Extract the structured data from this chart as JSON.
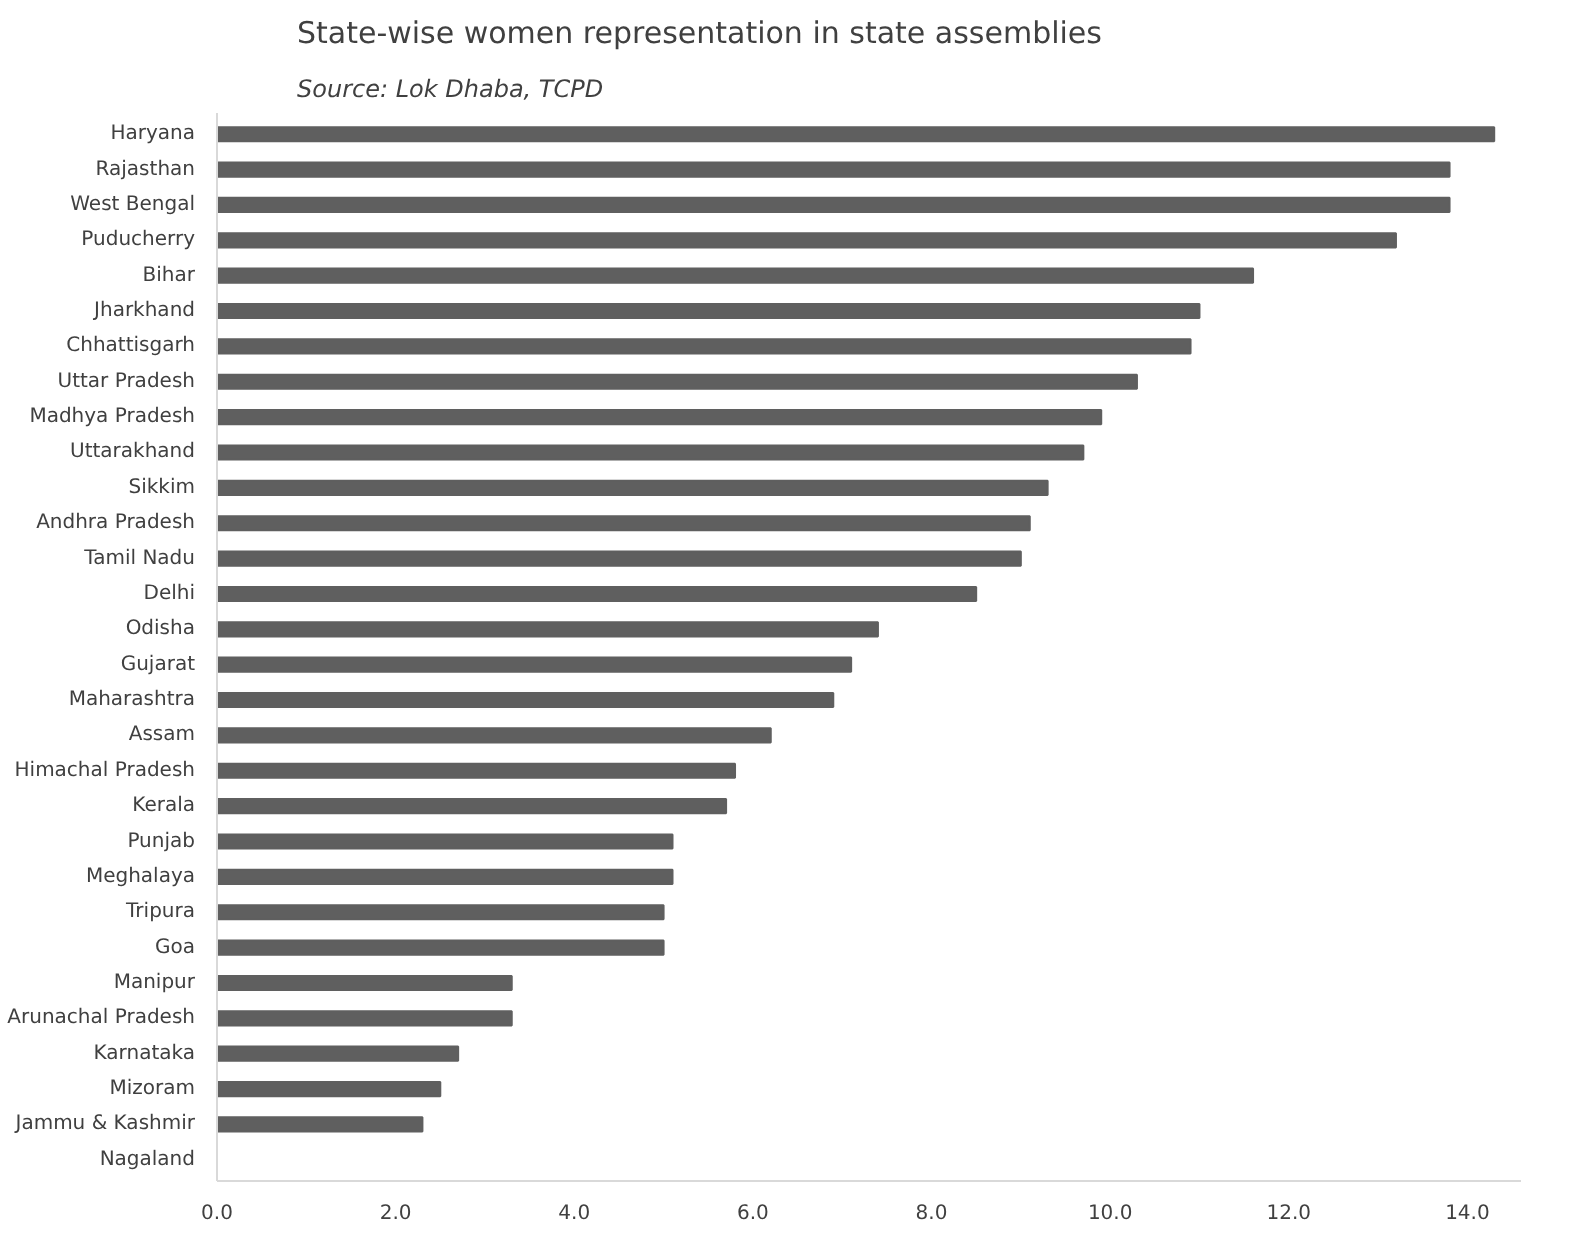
{
  "chart_data": {
    "type": "bar",
    "orientation": "horizontal",
    "title": "State-wise women representation in state assemblies",
    "subtitle": "Source: Lok Dhaba, TCPD",
    "categories": [
      "Haryana",
      "Rajasthan",
      "West Bengal",
      "Puducherry",
      "Bihar",
      "Jharkhand",
      "Chhattisgarh",
      "Uttar Pradesh",
      "Madhya Pradesh",
      "Uttarakhand",
      "Sikkim",
      "Andhra Pradesh",
      "Tamil Nadu",
      "Delhi",
      "Odisha",
      "Gujarat",
      "Maharashtra",
      "Assam",
      "Himachal Pradesh",
      "Kerala",
      "Punjab",
      "Meghalaya",
      "Tripura",
      "Goa",
      "Manipur",
      "Arunachal Pradesh",
      "Karnataka",
      "Mizoram",
      "Jammu & Kashmir",
      "Nagaland"
    ],
    "values": [
      14.3,
      13.8,
      13.8,
      13.2,
      11.6,
      11.0,
      10.9,
      10.3,
      9.9,
      9.7,
      9.3,
      9.1,
      9.0,
      8.5,
      7.4,
      7.1,
      6.9,
      6.2,
      5.8,
      5.7,
      5.1,
      5.1,
      5.0,
      5.0,
      3.3,
      3.3,
      2.7,
      2.5,
      2.3,
      0
    ],
    "color": "#5f5f5f",
    "xlim": [
      0,
      14.6
    ],
    "xticks": [
      {
        "value": 0,
        "label": "0.0"
      },
      {
        "value": 2,
        "label": "2.0"
      },
      {
        "value": 4,
        "label": "4.0"
      },
      {
        "value": 6,
        "label": "6.0"
      },
      {
        "value": 8,
        "label": "8.0"
      },
      {
        "value": 10,
        "label": "10.0"
      },
      {
        "value": 12,
        "label": "12.0"
      },
      {
        "value": 14,
        "label": "14.0"
      }
    ],
    "grid": false
  }
}
